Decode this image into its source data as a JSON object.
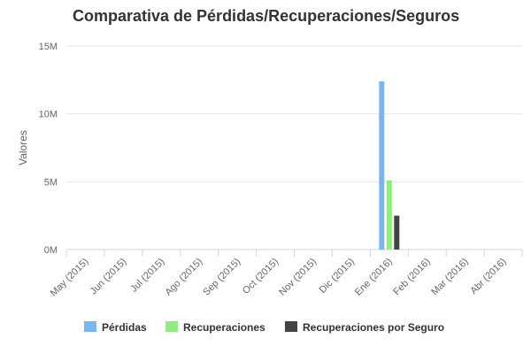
{
  "chart_data": {
    "type": "bar",
    "title": "Comparativa de Pérdidas/Recuperaciones/Seguros",
    "xlabel": "",
    "ylabel": "Valores",
    "ylim": [
      0,
      15000000
    ],
    "yticks": [
      0,
      5000000,
      10000000,
      15000000
    ],
    "ytick_labels": [
      "0M",
      "5M",
      "10M",
      "15M"
    ],
    "grid": true,
    "legend": "bottom",
    "categories": [
      "May (2015)",
      "Jun (2015)",
      "Jul (2015)",
      "Ago (2015)",
      "Sep (2015)",
      "Oct (2015)",
      "Nov (2015)",
      "Dic (2015)",
      "Ene (2016)",
      "Feb (2016)",
      "Mar (2016)",
      "Abr (2016)"
    ],
    "series": [
      {
        "name": "Pérdidas",
        "color": "#7cb5ec",
        "values": [
          0,
          0,
          0,
          0,
          0,
          0,
          0,
          0,
          12400000,
          0,
          0,
          0
        ]
      },
      {
        "name": "Recuperaciones",
        "color": "#90ed7d",
        "values": [
          0,
          0,
          0,
          0,
          0,
          0,
          0,
          0,
          5100000,
          0,
          0,
          0
        ]
      },
      {
        "name": "Recuperaciones por Seguro",
        "color": "#434348",
        "values": [
          0,
          0,
          0,
          0,
          0,
          0,
          0,
          0,
          2500000,
          0,
          0,
          0
        ]
      }
    ]
  }
}
